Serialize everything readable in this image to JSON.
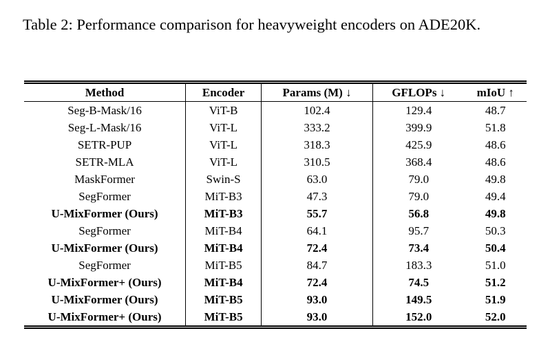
{
  "caption": "Table 2: Performance comparison for heavyweight encoders on ADE20K.",
  "table": {
    "headers": {
      "method": "Method",
      "encoder": "Encoder",
      "params": "Params (M) ↓",
      "gflops": "GFLOPs ↓",
      "miou": "mIoU ↑"
    },
    "rows": [
      {
        "method": "Seg-B-Mask/16",
        "encoder": "ViT-B",
        "params": "102.4",
        "gflops": "129.4",
        "miou": "48.7",
        "bold": false
      },
      {
        "method": "Seg-L-Mask/16",
        "encoder": "ViT-L",
        "params": "333.2",
        "gflops": "399.9",
        "miou": "51.8",
        "bold": false
      },
      {
        "method": "SETR-PUP",
        "encoder": "ViT-L",
        "params": "318.3",
        "gflops": "425.9",
        "miou": "48.6",
        "bold": false
      },
      {
        "method": "SETR-MLA",
        "encoder": "ViT-L",
        "params": "310.5",
        "gflops": "368.4",
        "miou": "48.6",
        "bold": false
      },
      {
        "method": "MaskFormer",
        "encoder": "Swin-S",
        "params": "63.0",
        "gflops": "79.0",
        "miou": "49.8",
        "bold": false
      },
      {
        "method": "SegFormer",
        "encoder": "MiT-B3",
        "params": "47.3",
        "gflops": "79.0",
        "miou": "49.4",
        "bold": false
      },
      {
        "method": "U-MixFormer (Ours)",
        "encoder": "MiT-B3",
        "params": "55.7",
        "gflops": "56.8",
        "miou": "49.8",
        "bold": true
      },
      {
        "method": "SegFormer",
        "encoder": "MiT-B4",
        "params": "64.1",
        "gflops": "95.7",
        "miou": "50.3",
        "bold": false
      },
      {
        "method": "U-MixFormer (Ours)",
        "encoder": "MiT-B4",
        "params": "72.4",
        "gflops": "73.4",
        "miou": "50.4",
        "bold": true
      },
      {
        "method": "SegFormer",
        "encoder": "MiT-B5",
        "params": "84.7",
        "gflops": "183.3",
        "miou": "51.0",
        "bold": false
      },
      {
        "method": "U-MixFormer+ (Ours)",
        "encoder": "MiT-B4",
        "params": "72.4",
        "gflops": "74.5",
        "miou": "51.2",
        "bold": true
      },
      {
        "method": "U-MixFormer (Ours)",
        "encoder": "MiT-B5",
        "params": "93.0",
        "gflops": "149.5",
        "miou": "51.9",
        "bold": true
      },
      {
        "method": "U-MixFormer+ (Ours)",
        "encoder": "MiT-B5",
        "params": "93.0",
        "gflops": "152.0",
        "miou": "52.0",
        "bold": true
      }
    ]
  }
}
